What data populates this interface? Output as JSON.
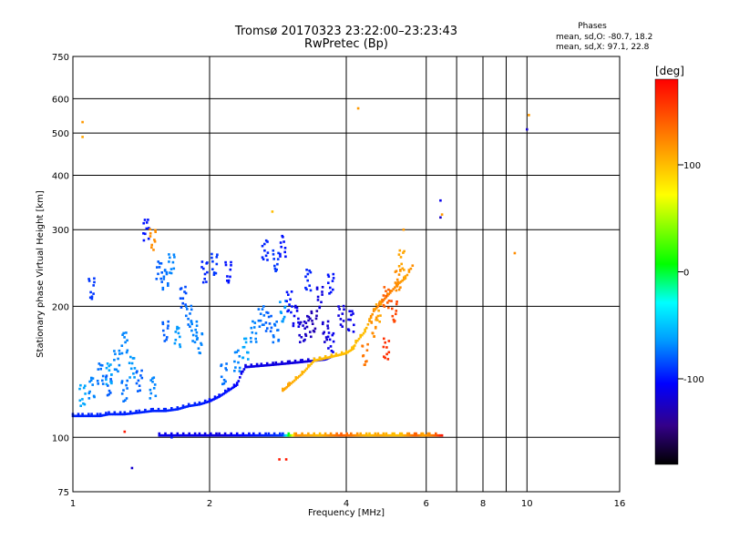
{
  "chart_data": {
    "type": "scatter",
    "title": "Tromsø 20170323 23:22:00–23:23:43",
    "subtitle": "RwPretec (Bp)",
    "xlabel": "Frequency [MHz]",
    "ylabel": "Stationary phase Virtual Height [km]",
    "xscale": "log",
    "yscale": "log",
    "xlim": [
      1,
      16
    ],
    "ylim": [
      75,
      750
    ],
    "x_ticks": [
      1,
      2,
      4,
      6,
      8,
      10,
      16
    ],
    "x_minor_ticks": [
      7,
      9
    ],
    "y_ticks": [
      75,
      100,
      200,
      300,
      400,
      500,
      600,
      750
    ],
    "grid": true,
    "phase_stats": {
      "title": "Phases",
      "line_o": "mean, sd,O: -80.7, 18.2",
      "line_x": "mean, sd,X:  97.1, 22.8"
    },
    "colorbar": {
      "label": "[deg]",
      "range": [
        -180,
        180
      ],
      "ticks": [
        100,
        0,
        -100
      ],
      "colors": [
        "#ff0000",
        "#ff9900",
        "#ffff00",
        "#00ff00",
        "#00ffff",
        "#0099ff",
        "#0000ff",
        "#330088",
        "#000000"
      ]
    },
    "series": [
      {
        "kind": "trace",
        "points": [
          [
            1.0,
            112,
            -95
          ],
          [
            1.05,
            112,
            -95
          ],
          [
            1.1,
            112,
            -95
          ],
          [
            1.15,
            112,
            -95
          ],
          [
            1.2,
            113,
            -95
          ],
          [
            1.3,
            113,
            -95
          ],
          [
            1.4,
            114,
            -95
          ],
          [
            1.5,
            115,
            -95
          ],
          [
            1.6,
            115,
            -95
          ],
          [
            1.7,
            116,
            -95
          ],
          [
            1.8,
            118,
            -95
          ],
          [
            1.9,
            119,
            -95
          ],
          [
            2.0,
            121,
            -100
          ],
          [
            2.1,
            124,
            -100
          ],
          [
            2.2,
            128,
            -100
          ],
          [
            2.3,
            132,
            -105
          ],
          [
            2.35,
            140,
            -110
          ],
          [
            2.4,
            145,
            -112
          ],
          [
            2.6,
            146,
            -112
          ],
          [
            2.8,
            147,
            -115
          ],
          [
            3.0,
            148,
            -115
          ],
          [
            3.2,
            149,
            -115
          ],
          [
            3.4,
            150,
            -115
          ],
          [
            3.6,
            151,
            -115
          ],
          [
            3.7,
            153,
            -110
          ]
        ]
      },
      {
        "kind": "trace",
        "points": [
          [
            2.9,
            128,
            110
          ],
          [
            3.0,
            132,
            110
          ],
          [
            3.1,
            136,
            105
          ],
          [
            3.2,
            140,
            105
          ],
          [
            3.3,
            145,
            100
          ],
          [
            3.4,
            150,
            100
          ],
          [
            3.6,
            152,
            100
          ],
          [
            3.8,
            154,
            100
          ],
          [
            4.0,
            156,
            100
          ],
          [
            4.15,
            160,
            100
          ],
          [
            4.2,
            165,
            100
          ],
          [
            4.3,
            170,
            100
          ],
          [
            4.4,
            175,
            100
          ],
          [
            4.5,
            185,
            110
          ],
          [
            4.6,
            195,
            120
          ],
          [
            4.8,
            205,
            130
          ],
          [
            5.0,
            215,
            125
          ],
          [
            5.2,
            225,
            120
          ],
          [
            5.4,
            232,
            110
          ],
          [
            5.5,
            240,
            115
          ],
          [
            5.6,
            248,
            120
          ]
        ]
      },
      {
        "kind": "trace",
        "points": [
          [
            1.55,
            101,
            -110
          ],
          [
            1.7,
            101,
            -110
          ],
          [
            1.9,
            101,
            -110
          ],
          [
            2.1,
            101,
            -115
          ],
          [
            2.3,
            101,
            -105
          ],
          [
            2.5,
            101,
            -100
          ],
          [
            2.7,
            101,
            -95
          ],
          [
            2.9,
            101,
            -90
          ],
          [
            3.1,
            101,
            120
          ],
          [
            3.3,
            101,
            110
          ],
          [
            3.5,
            101,
            100
          ],
          [
            3.7,
            101,
            120
          ],
          [
            3.9,
            101,
            140
          ],
          [
            4.1,
            101,
            130
          ],
          [
            4.3,
            101,
            110
          ],
          [
            4.5,
            101,
            100
          ],
          [
            4.7,
            101,
            110
          ],
          [
            4.9,
            101,
            105
          ],
          [
            5.1,
            101,
            100
          ],
          [
            5.3,
            101,
            100
          ],
          [
            5.5,
            101,
            120
          ],
          [
            5.7,
            101,
            140
          ],
          [
            5.9,
            101,
            110
          ],
          [
            6.1,
            101,
            120
          ],
          [
            6.3,
            101,
            140
          ],
          [
            6.5,
            101,
            170
          ]
        ]
      },
      {
        "kind": "scatter",
        "points": [
          [
            1.05,
            125,
            -60
          ],
          [
            1.1,
            130,
            -70
          ],
          [
            1.15,
            140,
            -75
          ],
          [
            1.2,
            132,
            -80
          ],
          [
            1.25,
            150,
            -70
          ],
          [
            1.3,
            128,
            -75
          ],
          [
            1.35,
            145,
            -65
          ],
          [
            1.4,
            135,
            -80
          ],
          [
            1.5,
            130,
            -70
          ],
          [
            1.55,
            240,
            -80
          ],
          [
            1.6,
            230,
            -75
          ],
          [
            1.65,
            250,
            -70
          ],
          [
            1.7,
            170,
            -65
          ],
          [
            1.75,
            210,
            -85
          ],
          [
            1.8,
            190,
            -75
          ],
          [
            1.85,
            175,
            -70
          ],
          [
            1.9,
            165,
            -70
          ],
          [
            1.95,
            240,
            -95
          ],
          [
            2.05,
            250,
            -90
          ],
          [
            2.2,
            240,
            -100
          ],
          [
            2.4,
            160,
            -60
          ],
          [
            2.5,
            175,
            -70
          ],
          [
            2.6,
            190,
            -75
          ],
          [
            2.7,
            185,
            -80
          ],
          [
            2.8,
            175,
            -75
          ],
          [
            2.9,
            195,
            -65
          ],
          [
            3.0,
            205,
            -100
          ],
          [
            3.1,
            190,
            -110
          ],
          [
            3.2,
            175,
            -120
          ],
          [
            3.3,
            180,
            -125
          ],
          [
            3.4,
            185,
            -130
          ],
          [
            3.5,
            210,
            -115
          ],
          [
            3.6,
            175,
            -120
          ],
          [
            3.7,
            165,
            -110
          ],
          [
            3.9,
            190,
            -115
          ],
          [
            4.1,
            185,
            -110
          ],
          [
            2.65,
            270,
            -95
          ],
          [
            2.8,
            255,
            -90
          ],
          [
            2.9,
            275,
            -100
          ],
          [
            3.3,
            230,
            -95
          ],
          [
            3.7,
            225,
            -100
          ],
          [
            1.1,
            220,
            -90
          ],
          [
            1.45,
            300,
            -100
          ],
          [
            1.5,
            285,
            120
          ],
          [
            1.3,
            165,
            -70
          ],
          [
            1.2,
            140,
            -60
          ],
          [
            1.6,
            175,
            -80
          ],
          [
            2.15,
            140,
            -75
          ],
          [
            2.3,
            150,
            -70
          ],
          [
            5.3,
            255,
            110
          ],
          [
            5.2,
            230,
            120
          ],
          [
            4.9,
            210,
            140
          ],
          [
            4.6,
            180,
            120
          ],
          [
            4.7,
            195,
            110
          ],
          [
            4.4,
            155,
            130
          ],
          [
            4.9,
            160,
            160
          ],
          [
            5.1,
            195,
            150
          ]
        ]
      },
      {
        "kind": "outliers",
        "points": [
          [
            1.05,
            530,
            115
          ],
          [
            1.05,
            490,
            110
          ],
          [
            4.25,
            570,
            115
          ],
          [
            2.75,
            330,
            100
          ],
          [
            6.45,
            350,
            -110
          ],
          [
            6.45,
            320,
            -125
          ],
          [
            6.5,
            325,
            115
          ],
          [
            5.35,
            300,
            115
          ],
          [
            9.4,
            265,
            120
          ],
          [
            10.0,
            510,
            -120
          ],
          [
            10.1,
            550,
            115
          ],
          [
            1.35,
            85,
            -120
          ],
          [
            2.85,
            89,
            170
          ],
          [
            2.95,
            89,
            170
          ],
          [
            1.3,
            103,
            170
          ],
          [
            1.65,
            100,
            -100
          ]
        ]
      }
    ]
  }
}
